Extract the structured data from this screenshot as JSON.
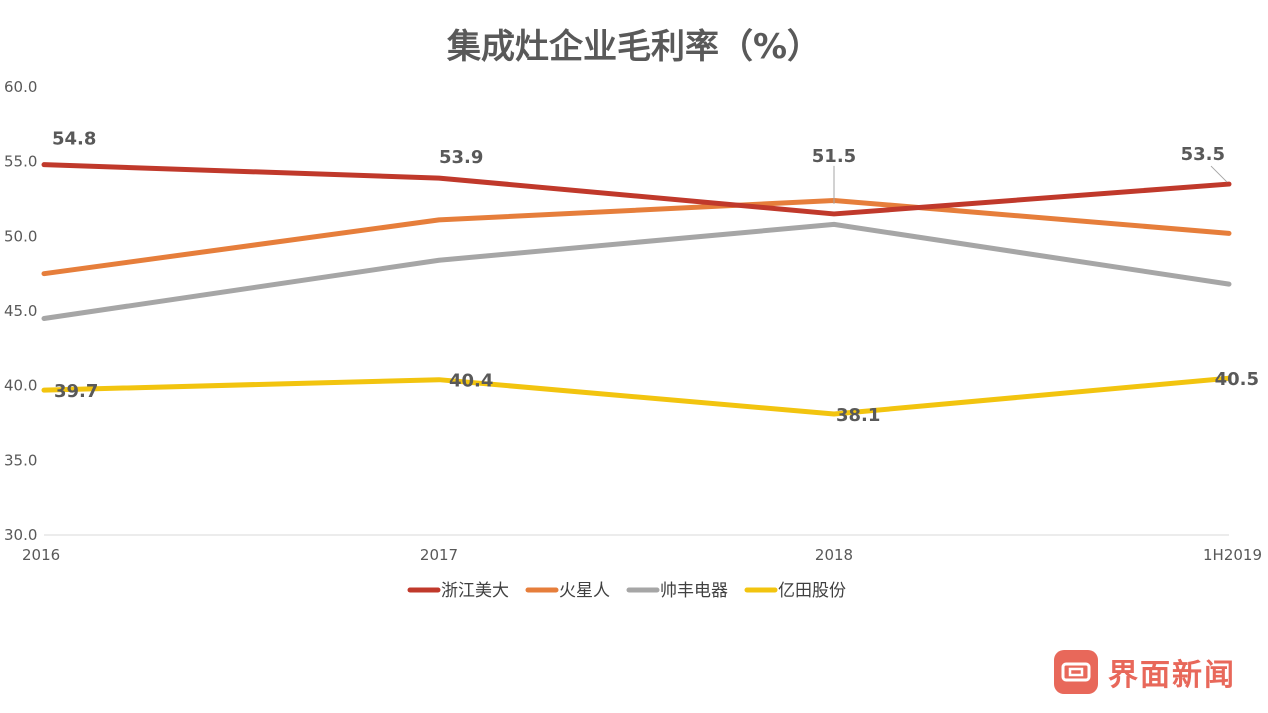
{
  "chart_data": {
    "type": "line",
    "title": "集成灶企业毛利率（%）",
    "categories": [
      "2016",
      "2017",
      "2018",
      "1H2019"
    ],
    "ylim": [
      30,
      60
    ],
    "yticks": [
      "30.0",
      "35.0",
      "40.0",
      "45.0",
      "50.0",
      "55.0",
      "60.0"
    ],
    "ytick_values": [
      30,
      35,
      40,
      45,
      50,
      55,
      60
    ],
    "grid": false,
    "legend_position": "bottom",
    "series": [
      {
        "name": "浙江美大",
        "color": "#c0392b",
        "values": [
          54.8,
          53.9,
          51.5,
          53.5
        ],
        "labels": [
          "54.8",
          "53.9",
          "51.5",
          "53.5"
        ]
      },
      {
        "name": "火星人",
        "color": "#e67e3b",
        "values": [
          47.5,
          51.1,
          52.4,
          50.2
        ],
        "labels": null
      },
      {
        "name": "帅丰电器",
        "color": "#a6a6a6",
        "values": [
          44.5,
          48.4,
          50.8,
          46.8
        ],
        "labels": null
      },
      {
        "name": "亿田股份",
        "color": "#f2c40f",
        "values": [
          39.7,
          40.4,
          38.1,
          40.5
        ],
        "labels": [
          "39.7",
          "40.4",
          "38.1",
          "40.5"
        ]
      }
    ]
  },
  "watermark": {
    "text": "界面新闻",
    "icon": "jiemian-logo-icon"
  }
}
